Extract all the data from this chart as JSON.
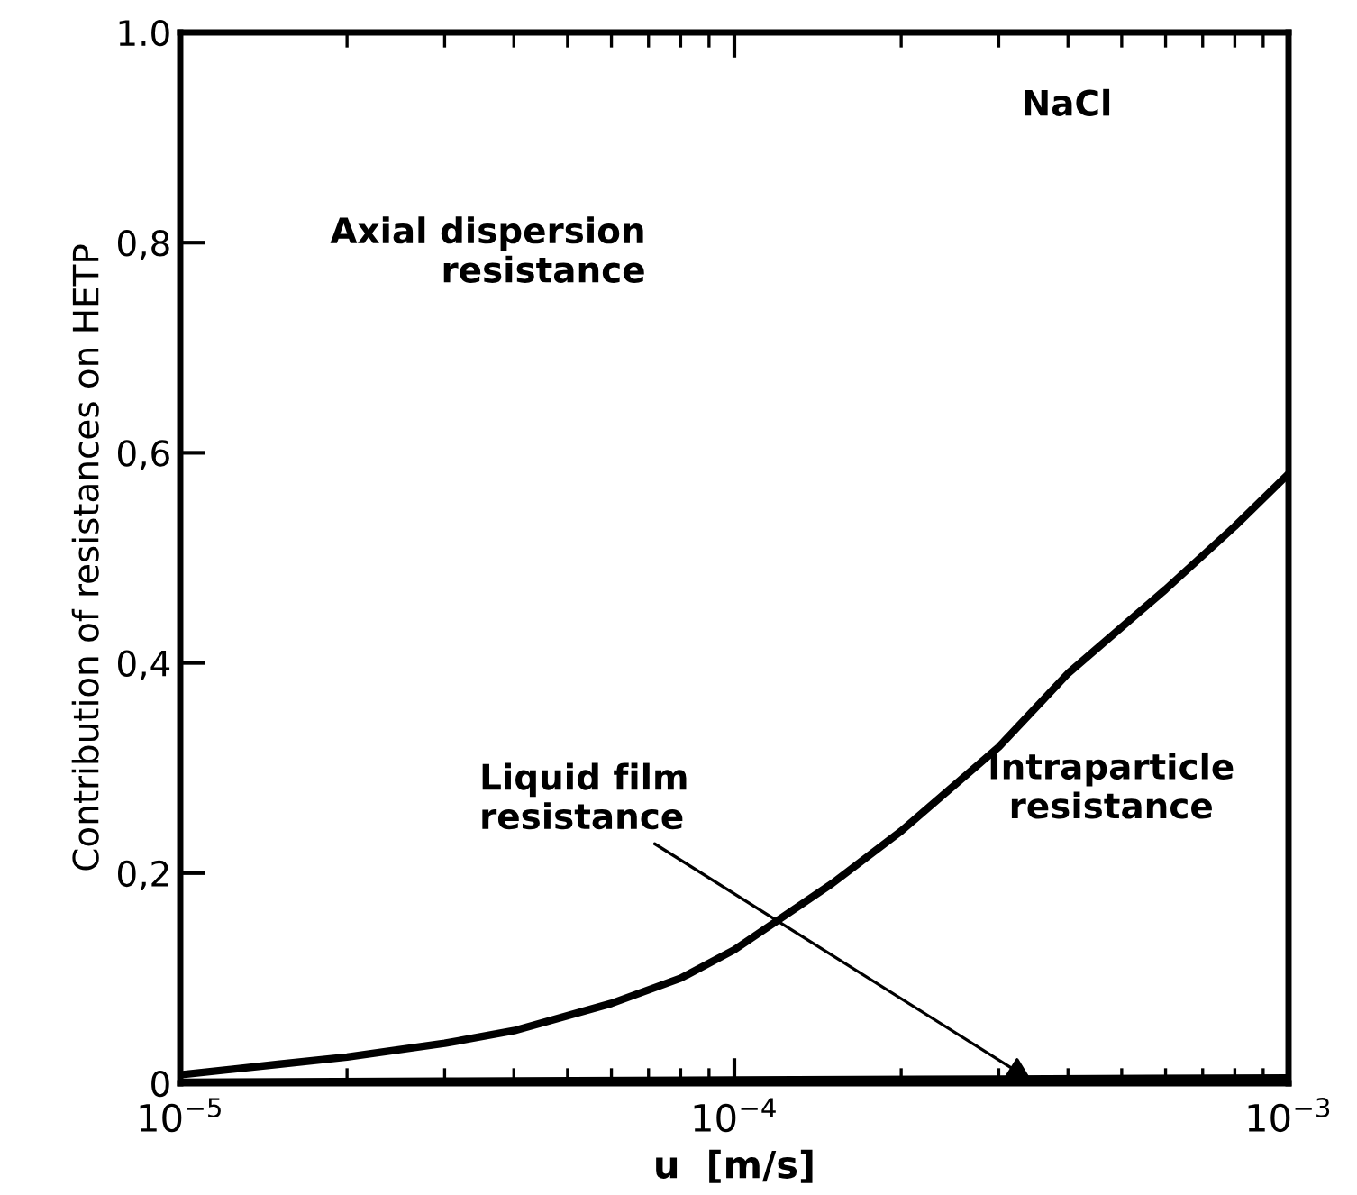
{
  "chart_data": {
    "type": "line",
    "xlabel": "u  [m/s]",
    "ylabel": "Contribution of resistances on HETP",
    "log": "x",
    "xlim": [
      1e-05,
      0.001
    ],
    "xticks": [
      {
        "value": 1e-05,
        "label": "10$^{−5}$"
      },
      {
        "value": 0.0001,
        "label": "10$^{−4}$"
      },
      {
        "value": 0.001,
        "label": "10$^{−3}$"
      }
    ],
    "ylim": [
      0,
      1.0
    ],
    "yticks": [
      {
        "value": 0,
        "label": "0"
      },
      {
        "value": 0.2,
        "label": "0,2"
      },
      {
        "value": 0.4,
        "label": "0,4"
      },
      {
        "value": 0.6,
        "label": "0,6"
      },
      {
        "value": 0.8,
        "label": "0,8"
      },
      {
        "value": 1.0,
        "label": "1.0"
      }
    ],
    "grid": false,
    "legend": false,
    "marker": "none",
    "line_style": "solid",
    "series": [
      {
        "color": "#000000",
        "x": [
          1e-05,
          1.5e-05,
          2e-05,
          3e-05,
          4e-05,
          6e-05,
          8e-05,
          0.0001,
          0.00015,
          0.0002,
          0.0003,
          0.0004,
          0.0006,
          0.0008,
          0.001
        ],
        "values": [
          0.008,
          0.018,
          0.025,
          0.038,
          0.05,
          0.076,
          0.1,
          0.127,
          0.19,
          0.24,
          0.32,
          0.39,
          0.47,
          0.53,
          0.58
        ]
      },
      {
        "color": "#000000",
        "x": [
          1e-05,
          3e-05,
          0.0001,
          0.0003,
          0.001
        ],
        "values": [
          0.001,
          0.002,
          0.003,
          0.004,
          0.005
        ]
      }
    ],
    "annotations": [
      "NaCl",
      "Axial dispersion\nresistance",
      {
        "text": "Liquid film\nresistance",
        "x": 0.00035,
        "y": 0
      },
      "Intraparticle\nresistance"
    ]
  }
}
